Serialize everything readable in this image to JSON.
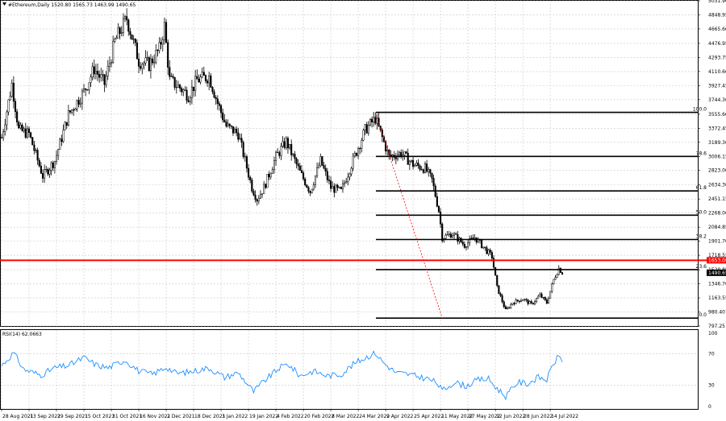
{
  "header": {
    "symbol": "#Ethereum,Daily",
    "ohlc": "1520.80 1565.73 1463.99 1490.65"
  },
  "rsi_label": "RSI(14) 62.0663",
  "chart_data": {
    "type": "candlestick",
    "main": {
      "ylim": [
        797.25,
        5031.9
      ],
      "y_ticks": [
        "5031.90",
        "4848.95",
        "4665.60",
        "4476.95",
        "4293.75",
        "4110.60",
        "3927.45",
        "3744.30",
        "3555.60",
        "3372.45",
        "3189.30",
        "3006.15",
        "2823.00",
        "2634.30",
        "2451.15",
        "2268.00",
        "2084.85",
        "1901.70",
        "1718.55",
        "1529.85",
        "1346.70",
        "1163.55",
        "980.40",
        "797.25"
      ],
      "horizontal_line": {
        "price": 1653,
        "color": "#ff0000",
        "label": "1653.09"
      },
      "current_price": {
        "price": 1490.65,
        "label": "1490.65"
      },
      "fibonacci": {
        "high": 3580,
        "low": 900,
        "levels": [
          {
            "label": "100.0",
            "price": 3580
          },
          {
            "label": "78.6",
            "price": 3006
          },
          {
            "label": "61.8",
            "price": 2556
          },
          {
            "label": "50.0",
            "price": 2240
          },
          {
            "label": "38.2",
            "price": 1924
          },
          {
            "label": "23.6",
            "price": 1532
          },
          {
            "label": "0.0",
            "price": 900
          }
        ]
      },
      "trendline": {
        "from": [
          "2022-04-03",
          3580
        ],
        "to": [
          "2022-05-12",
          900
        ],
        "color": "#ff0000",
        "style": "dotted"
      },
      "price_path": [
        [
          "2021-08-28",
          3250
        ],
        [
          "2021-09-03",
          3950
        ],
        [
          "2021-09-07",
          3350
        ],
        [
          "2021-09-13",
          3300
        ],
        [
          "2021-09-21",
          2750
        ],
        [
          "2021-09-28",
          2950
        ],
        [
          "2021-10-06",
          3550
        ],
        [
          "2021-10-15",
          3850
        ],
        [
          "2021-10-21",
          4150
        ],
        [
          "2021-10-27",
          3950
        ],
        [
          "2021-11-02",
          4500
        ],
        [
          "2021-11-09",
          4800
        ],
        [
          "2021-11-16",
          4250
        ],
        [
          "2021-11-22",
          4200
        ],
        [
          "2021-11-28",
          4400
        ],
        [
          "2021-12-01",
          4700
        ],
        [
          "2021-12-04",
          4000
        ],
        [
          "2021-12-10",
          3900
        ],
        [
          "2021-12-15",
          3800
        ],
        [
          "2021-12-20",
          4000
        ],
        [
          "2021-12-27",
          4050
        ],
        [
          "2022-01-01",
          3700
        ],
        [
          "2022-01-06",
          3400
        ],
        [
          "2022-01-13",
          3300
        ],
        [
          "2022-01-21",
          2600
        ],
        [
          "2022-01-24",
          2450
        ],
        [
          "2022-01-28",
          2600
        ],
        [
          "2022-02-04",
          3000
        ],
        [
          "2022-02-10",
          3200
        ],
        [
          "2022-02-18",
          2800
        ],
        [
          "2022-02-24",
          2550
        ],
        [
          "2022-03-02",
          2950
        ],
        [
          "2022-03-08",
          2600
        ],
        [
          "2022-03-14",
          2550
        ],
        [
          "2022-03-20",
          2900
        ],
        [
          "2022-03-28",
          3350
        ],
        [
          "2022-04-03",
          3500
        ],
        [
          "2022-04-07",
          3250
        ],
        [
          "2022-04-11",
          3000
        ],
        [
          "2022-04-18",
          3050
        ],
        [
          "2022-04-25",
          2900
        ],
        [
          "2022-05-02",
          2850
        ],
        [
          "2022-05-06",
          2700
        ],
        [
          "2022-05-10",
          2300
        ],
        [
          "2022-05-12",
          1950
        ],
        [
          "2022-05-18",
          2000
        ],
        [
          "2022-05-25",
          1850
        ],
        [
          "2022-05-31",
          1950
        ],
        [
          "2022-06-06",
          1800
        ],
        [
          "2022-06-10",
          1700
        ],
        [
          "2022-06-13",
          1300
        ],
        [
          "2022-06-18",
          1000
        ],
        [
          "2022-06-22",
          1100
        ],
        [
          "2022-06-28",
          1150
        ],
        [
          "2022-07-03",
          1080
        ],
        [
          "2022-07-08",
          1200
        ],
        [
          "2022-07-12",
          1100
        ],
        [
          "2022-07-16",
          1400
        ],
        [
          "2022-07-19",
          1550
        ],
        [
          "2022-07-21",
          1490
        ]
      ]
    },
    "rsi": {
      "ylim": [
        0,
        100
      ],
      "y_ticks": [
        "100",
        "70",
        "30",
        "0"
      ],
      "levels": [
        70,
        30
      ],
      "color": "#1e90ff",
      "path": [
        [
          "2021-08-28",
          55
        ],
        [
          "2021-09-04",
          71
        ],
        [
          "2021-09-10",
          50
        ],
        [
          "2021-09-20",
          43
        ],
        [
          "2021-09-28",
          52
        ],
        [
          "2021-10-06",
          55
        ],
        [
          "2021-10-15",
          65
        ],
        [
          "2021-10-22",
          56
        ],
        [
          "2021-10-29",
          52
        ],
        [
          "2021-11-08",
          62
        ],
        [
          "2021-11-16",
          48
        ],
        [
          "2021-11-24",
          44
        ],
        [
          "2021-12-02",
          53
        ],
        [
          "2021-12-08",
          45
        ],
        [
          "2021-12-16",
          47
        ],
        [
          "2021-12-27",
          52
        ],
        [
          "2022-01-05",
          40
        ],
        [
          "2022-01-13",
          46
        ],
        [
          "2022-01-22",
          22
        ],
        [
          "2022-01-28",
          35
        ],
        [
          "2022-02-06",
          52
        ],
        [
          "2022-02-11",
          57
        ],
        [
          "2022-02-18",
          42
        ],
        [
          "2022-02-26",
          48
        ],
        [
          "2022-03-06",
          42
        ],
        [
          "2022-03-14",
          44
        ],
        [
          "2022-03-22",
          58
        ],
        [
          "2022-03-29",
          66
        ],
        [
          "2022-04-03",
          71
        ],
        [
          "2022-04-08",
          58
        ],
        [
          "2022-04-15",
          46
        ],
        [
          "2022-04-22",
          44
        ],
        [
          "2022-04-28",
          41
        ],
        [
          "2022-05-04",
          38
        ],
        [
          "2022-05-09",
          33
        ],
        [
          "2022-05-12",
          23
        ],
        [
          "2022-05-19",
          34
        ],
        [
          "2022-05-26",
          29
        ],
        [
          "2022-06-02",
          37
        ],
        [
          "2022-06-08",
          38
        ],
        [
          "2022-06-12",
          28
        ],
        [
          "2022-06-18",
          16
        ],
        [
          "2022-06-25",
          34
        ],
        [
          "2022-07-01",
          32
        ],
        [
          "2022-07-07",
          40
        ],
        [
          "2022-07-12",
          37
        ],
        [
          "2022-07-16",
          58
        ],
        [
          "2022-07-19",
          67
        ],
        [
          "2022-07-21",
          62
        ]
      ]
    },
    "x_ticks": [
      "28 Aug 2021",
      "13 Sep 2021",
      "29 Sep 2021",
      "15 Oct 2021",
      "31 Oct 2021",
      "16 Nov 2021",
      "2 Dec 2021",
      "18 Dec 2021",
      "3 Jan 2022",
      "19 Jan 2022",
      "4 Feb 2022",
      "20 Feb 2022",
      "8 Mar 2022",
      "24 Mar 2022",
      "9 Apr 2022",
      "25 Apr 2022",
      "11 May 2022",
      "27 May 2022",
      "12 Jun 2022",
      "28 Jun 2022",
      "14 Jul 2022"
    ],
    "x_start": "2021-08-28",
    "x_end": "2022-07-21",
    "grid": true
  }
}
